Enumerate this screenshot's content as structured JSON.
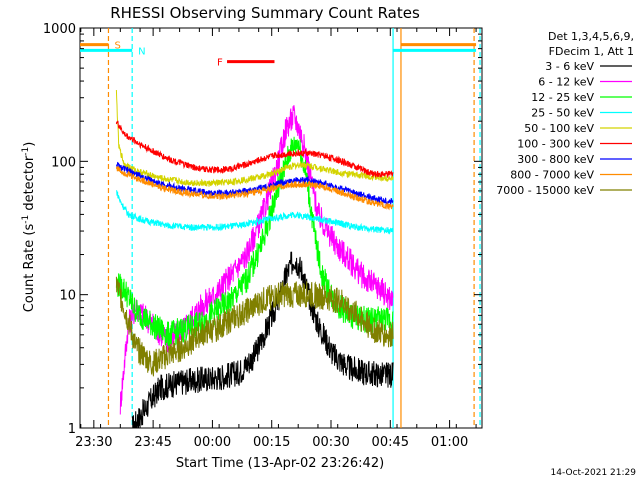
{
  "chart_data": {
    "type": "line",
    "title": "RHESSI Observing Summary Count Rates",
    "xlabel": "Start Time (13-Apr-02 23:26:42)",
    "ylabel": "Count Rate (s",
    "ylabel_sup": "-1",
    "ylabel_mid": " detector",
    "ylabel_sup2": "-1",
    "ylabel_end": ")",
    "yscale": "log",
    "ylim": [
      1,
      1000
    ],
    "xlim_minutes": [
      -0.2,
      101.5
    ],
    "x_ticks": [
      {
        "label": "23:30",
        "m": 3.3
      },
      {
        "label": "23:45",
        "m": 18.3
      },
      {
        "label": "00:00",
        "m": 33.3
      },
      {
        "label": "00:15",
        "m": 48.3
      },
      {
        "label": "00:30",
        "m": 63.3
      },
      {
        "label": "00:45",
        "m": 78.3
      },
      {
        "label": "01:00",
        "m": 93.3
      }
    ],
    "y_ticks": [
      {
        "label": "1",
        "v": 1
      },
      {
        "label": "10",
        "v": 10
      },
      {
        "label": "100",
        "v": 100
      },
      {
        "label": "1000",
        "v": 1000
      }
    ],
    "legend_header": [
      "Det 1,3,4,5,6,9,",
      "FDecim 1, Att 1"
    ],
    "legend_position": "right",
    "series": [
      {
        "name": "3 - 6 keV",
        "color": "#000000",
        "x": [
          13,
          20,
          25,
          30,
          35,
          40,
          44,
          47,
          50,
          52,
          54,
          56,
          58,
          60,
          64,
          68,
          72,
          76,
          79
        ],
        "y": [
          1,
          2,
          2.2,
          2.3,
          2.4,
          2.6,
          3.5,
          5.5,
          9,
          14,
          19,
          15,
          9,
          6,
          3.5,
          2.8,
          2.6,
          2.5,
          2.5
        ]
      },
      {
        "name": "6 - 12 keV",
        "color": "#ff00ff",
        "x": [
          10,
          12,
          14,
          18,
          22,
          26,
          30,
          34,
          38,
          42,
          46,
          50,
          52,
          54,
          56,
          58,
          60,
          64,
          68,
          72,
          76,
          78,
          79
        ],
        "y": [
          1.5,
          6,
          8,
          6,
          4.5,
          5.5,
          8,
          10,
          14,
          20,
          40,
          100,
          180,
          220,
          150,
          80,
          40,
          25,
          18,
          13,
          11,
          9.5,
          9
        ]
      },
      {
        "name": "12 - 25 keV",
        "color": "#00ff00",
        "x": [
          9,
          11,
          14,
          18,
          22,
          26,
          30,
          34,
          38,
          42,
          46,
          50,
          53,
          55,
          57,
          59,
          61,
          64,
          68,
          72,
          76,
          78,
          79
        ],
        "y": [
          12,
          11,
          7.5,
          6,
          5,
          5.5,
          6,
          7.5,
          9,
          13,
          25,
          65,
          120,
          140,
          80,
          30,
          14,
          9,
          7,
          6.5,
          6.5,
          6.5,
          6.5
        ]
      },
      {
        "name": "25 - 50 keV",
        "color": "#00ffff",
        "x": [
          9,
          10,
          12,
          16,
          22,
          28,
          34,
          40,
          46,
          50,
          54,
          58,
          62,
          66,
          70,
          74,
          78,
          79
        ],
        "y": [
          60,
          50,
          40,
          36,
          33,
          32,
          32,
          33,
          36,
          38,
          40,
          38,
          36,
          34,
          32,
          31,
          30,
          30
        ]
      },
      {
        "name": "50 - 100 keV",
        "color": "#d4d400",
        "x": [
          9,
          9.6,
          11,
          14,
          20,
          26,
          32,
          38,
          44,
          48,
          52,
          56,
          60,
          64,
          68,
          72,
          76,
          79
        ],
        "y": [
          330,
          130,
          95,
          85,
          75,
          70,
          68,
          70,
          75,
          80,
          90,
          95,
          90,
          84,
          80,
          78,
          75,
          75
        ]
      },
      {
        "name": "100 - 300 keV",
        "color": "#ff0000",
        "x": [
          9,
          11,
          14,
          18,
          22,
          26,
          30,
          34,
          38,
          42,
          46,
          50,
          54,
          58,
          62,
          66,
          70,
          74,
          78,
          79
        ],
        "y": [
          200,
          160,
          140,
          120,
          105,
          95,
          88,
          86,
          88,
          95,
          105,
          112,
          115,
          115,
          110,
          100,
          90,
          80,
          80,
          82
        ]
      },
      {
        "name": "300 - 800 keV",
        "color": "#0000ff",
        "x": [
          9,
          10,
          14,
          20,
          26,
          32,
          38,
          44,
          50,
          54,
          58,
          62,
          66,
          70,
          74,
          78,
          79
        ],
        "y": [
          95,
          90,
          80,
          68,
          62,
          58,
          58,
          61,
          68,
          72,
          72,
          68,
          62,
          57,
          53,
          50,
          50
        ]
      },
      {
        "name": "800 - 7000 keV",
        "color": "#ff8c00",
        "x": [
          9,
          10,
          14,
          20,
          26,
          32,
          38,
          44,
          50,
          54,
          58,
          62,
          66,
          70,
          74,
          78,
          79
        ],
        "y": [
          90,
          85,
          75,
          64,
          58,
          55,
          55,
          58,
          64,
          67,
          67,
          64,
          58,
          53,
          49,
          46,
          46
        ]
      },
      {
        "name": "7000 - 15000 keV",
        "color": "#808000",
        "x": [
          9,
          10,
          14,
          18,
          22,
          26,
          30,
          34,
          38,
          42,
          46,
          50,
          54,
          58,
          62,
          66,
          70,
          74,
          78,
          79
        ],
        "y": [
          12,
          10,
          4,
          3,
          3.5,
          4,
          5,
          5.5,
          6.5,
          7.5,
          9,
          10,
          10,
          10,
          9.5,
          9,
          7,
          5.5,
          5,
          5
        ]
      }
    ],
    "markers": [
      {
        "label": "S",
        "color": "#ff8c00",
        "x_start": -0.2,
        "x_end": 7,
        "y": 750,
        "line_x": 7
      },
      {
        "label": "N",
        "color": "#00ffff",
        "x_start": -0.2,
        "x_end": 13,
        "y": 680,
        "line_x": 13
      },
      {
        "label": "F",
        "color": "#ff0000",
        "x_start": 37,
        "x_end": 49,
        "y": 560
      }
    ],
    "vertical_lines": [
      {
        "color": "#00ffff",
        "x": 79,
        "style": "solid"
      },
      {
        "color": "#ff8c00",
        "x": 81,
        "style": "solid"
      },
      {
        "color": "#00ffff",
        "x": 101,
        "style": "dashed"
      },
      {
        "color": "#ff8c00",
        "x": 99.5,
        "style": "dashed"
      }
    ],
    "right_segments": [
      {
        "color": "#ff8c00",
        "x_start": 81,
        "x_end": 100,
        "y": 750
      },
      {
        "color": "#00ffff",
        "x_start": 79,
        "x_end": 100,
        "y": 680
      }
    ]
  },
  "footer": {
    "timestamp": "14-Oct-2021 21:29"
  }
}
